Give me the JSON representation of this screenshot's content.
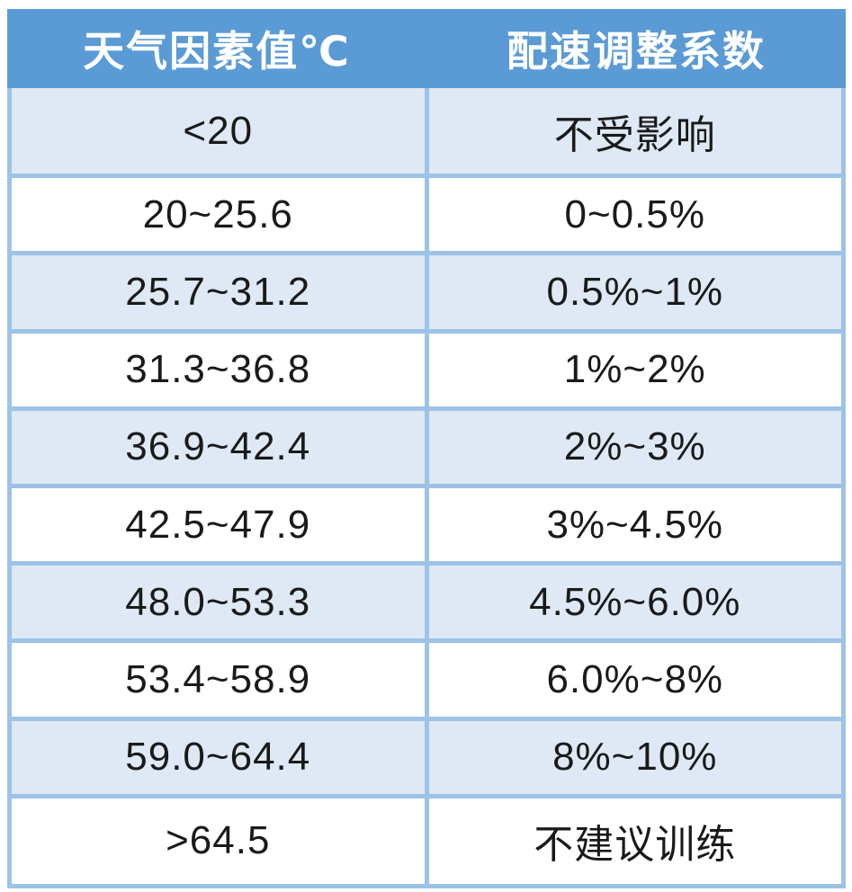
{
  "chart_data": {
    "type": "table",
    "columns": [
      "天气因素值℃",
      "配速调整系数"
    ],
    "rows": [
      [
        "<20",
        "不受影响"
      ],
      [
        "20~25.6",
        "0~0.5%"
      ],
      [
        "25.7~31.2",
        "0.5%~1%"
      ],
      [
        "31.3~36.8",
        "1%~2%"
      ],
      [
        "36.9~42.4",
        "2%~3%"
      ],
      [
        "42.5~47.9",
        "3%~4.5%"
      ],
      [
        "48.0~53.3",
        "4.5%~6.0%"
      ],
      [
        "53.4~58.9",
        "6.0%~8%"
      ],
      [
        "59.0~64.4",
        "8%~10%"
      ],
      [
        ">64.5",
        "不建议训练"
      ]
    ],
    "layout": {
      "striping": "odd rows light blue, even rows white",
      "header_style": "bold white on blue"
    },
    "colors": {
      "header_bg": "#5B9BD5",
      "header_text": "#FFFFFF",
      "row_alt_bg": "#DEE9F5",
      "row_bg": "#FFFFFF",
      "border": "#9DC3E6",
      "text": "#1A1A1A"
    }
  }
}
